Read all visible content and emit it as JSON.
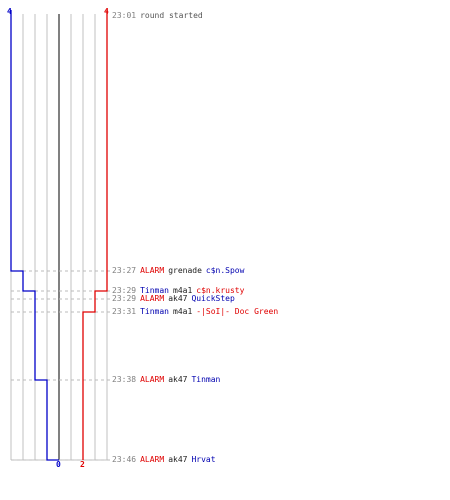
{
  "colors": {
    "red_team": "#e00000",
    "blue_team": "#0000c8",
    "grid": "#c0c0c0",
    "center": "#808080",
    "guide": "#bbbbbb",
    "time_text": "#808080",
    "weapon_text": "#202020",
    "alarm_text": "#e00000"
  },
  "counters": {
    "blue_start": "4",
    "red_start": "4",
    "blue_end": "0",
    "red_end": "2"
  },
  "events": [
    {
      "time": "23:01",
      "parts": [
        {
          "text": "round started",
          "color": "plain"
        }
      ]
    },
    {
      "time": "23:27",
      "parts": [
        {
          "text": "ALARM",
          "color": "red"
        },
        {
          "text": "grenade",
          "color": "black"
        },
        {
          "text": "c$n.Spow",
          "color": "blue"
        }
      ]
    },
    {
      "time": "23:29",
      "parts": [
        {
          "text": "Tinman",
          "color": "blue"
        },
        {
          "text": "m4a1",
          "color": "black"
        },
        {
          "text": "c$n.krusty",
          "color": "red"
        }
      ]
    },
    {
      "time": "23:29",
      "parts": [
        {
          "text": "ALARM",
          "color": "red"
        },
        {
          "text": "ak47",
          "color": "black"
        },
        {
          "text": "QuickStep",
          "color": "blue"
        }
      ]
    },
    {
      "time": "23:31",
      "parts": [
        {
          "text": "Tinman",
          "color": "blue"
        },
        {
          "text": "m4a1",
          "color": "black"
        },
        {
          "text": "-|SoI|- Doc Green",
          "color": "red"
        }
      ]
    },
    {
      "time": "23:38",
      "parts": [
        {
          "text": "ALARM",
          "color": "red"
        },
        {
          "text": "ak47",
          "color": "black"
        },
        {
          "text": "Tinman",
          "color": "blue"
        }
      ]
    },
    {
      "time": "23:46",
      "parts": [
        {
          "text": "ALARM",
          "color": "red"
        },
        {
          "text": "ak47",
          "color": "black"
        },
        {
          "text": "Hrvat",
          "color": "blue"
        }
      ]
    }
  ]
}
